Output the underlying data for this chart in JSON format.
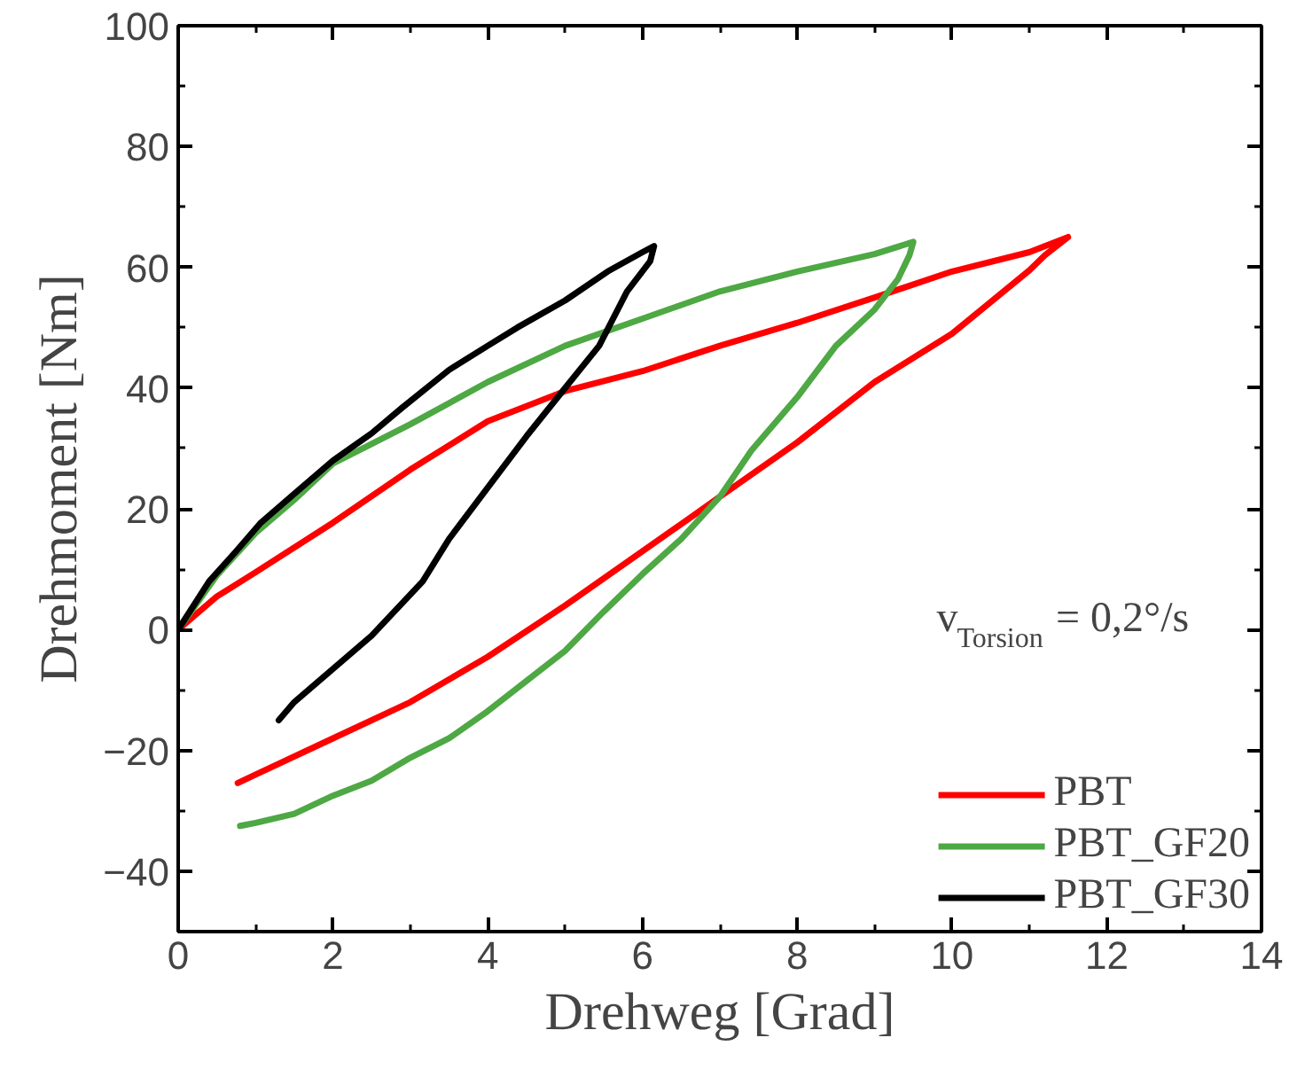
{
  "chart_data": {
    "type": "line",
    "xlabel": "Drehweg [Grad]",
    "ylabel": "Drehmoment [Nm]",
    "legend_title": "v$_{Torsion}$= 0,2°/s",
    "xlim": [
      0,
      14
    ],
    "ylim": [
      -50,
      100
    ],
    "xticks": [
      0,
      2,
      4,
      6,
      8,
      10,
      12,
      14
    ],
    "yticks": [
      -40,
      -20,
      0,
      20,
      40,
      60,
      80,
      100
    ],
    "grid": false,
    "legend": "bottom right",
    "line_style": "solid",
    "marker": "none",
    "series": [
      {
        "name": "PBT",
        "color": "#ff0000",
        "x": [
          0,
          0.5,
          1,
          2,
          3,
          4,
          5,
          6,
          7,
          8,
          9,
          10,
          11,
          11.5,
          11.2,
          11,
          10,
          9,
          8,
          7,
          6.67,
          6,
          5,
          4,
          3,
          2,
          1,
          0.77
        ],
        "values": [
          0,
          5.5,
          9.5,
          17.7,
          26.5,
          34.5,
          39.5,
          42.8,
          47,
          50.8,
          55,
          59.3,
          62.5,
          65,
          62,
          59.5,
          49,
          41,
          31,
          22,
          19,
          13,
          4,
          -4.5,
          -12,
          -18,
          -24,
          -25.4
        ]
      },
      {
        "name": "PBT_GF20",
        "color": "#4ea844",
        "x": [
          0,
          0.5,
          1,
          1.5,
          2,
          3,
          4,
          5,
          6,
          7,
          8,
          9,
          9.5,
          9.45,
          9.3,
          9,
          8.5,
          8,
          7.41,
          7,
          6.5,
          6,
          5.5,
          5,
          4.5,
          4,
          3.5,
          3,
          2.5,
          2,
          1.5,
          1,
          0.8
        ],
        "values": [
          0,
          9,
          16,
          21.5,
          27.5,
          34,
          41,
          47,
          51.5,
          56,
          59.3,
          62.2,
          64.2,
          62,
          58,
          53,
          47,
          38.5,
          29.7,
          22,
          15,
          9.2,
          3,
          -3.5,
          -8.5,
          -13.5,
          -18,
          -21.2,
          -25,
          -27.5,
          -30.5,
          -32,
          -32.5
        ]
      },
      {
        "name": "PBT_GF30",
        "color": "#000000",
        "x": [
          0,
          0.4,
          0.75,
          1.06,
          1.5,
          2,
          2.5,
          2.89,
          3.5,
          4,
          4.38,
          5,
          5.55,
          6,
          6.15,
          6.1,
          5.8,
          5.44,
          5,
          4.5,
          4,
          3.5,
          3.16,
          2.5,
          2,
          1.5,
          1.3
        ],
        "values": [
          0,
          8,
          13,
          17.6,
          22.5,
          28,
          32.5,
          36.7,
          43,
          47,
          50,
          54.5,
          59.3,
          62.5,
          63.5,
          61,
          56,
          47,
          40,
          32,
          23.5,
          15,
          8,
          -1,
          -6.5,
          -12,
          -15
        ]
      }
    ]
  }
}
